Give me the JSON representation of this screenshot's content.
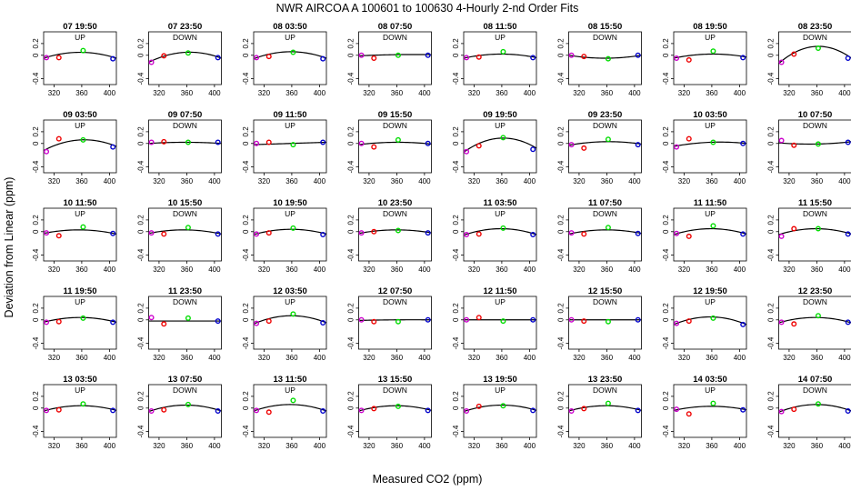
{
  "chart_data": {
    "type": "scatter",
    "title": "NWR   AIRCOA A    100601 to 100630   4-Hourly 2-nd Order Fits",
    "xlabel": "Measured CO2 (ppm)",
    "ylabel": "Deviation from Linear (ppm)",
    "xlim": [
      305,
      410
    ],
    "ylim": [
      -0.5,
      0.4
    ],
    "xticks": [
      320,
      360,
      400
    ],
    "yticks": [
      -0.4,
      0.0,
      0.2
    ],
    "ytick_labels": [
      "-0.4",
      "0",
      "0.2"
    ],
    "point_colors": [
      "#cc00cc",
      "#ee0000",
      "#00dd00",
      "#0000cc"
    ],
    "point_x": [
      309,
      327,
      362,
      405
    ],
    "grid": false,
    "legend": "none",
    "panel_layout": {
      "rows": 5,
      "cols": 8
    },
    "panels": [
      {
        "label": "07 19:50",
        "direction": "UP",
        "points": [
          -0.04,
          -0.04,
          0.08,
          -0.06
        ],
        "curve": [
          -0.05,
          0.05,
          -0.05
        ]
      },
      {
        "label": "07 23:50",
        "direction": "DOWN",
        "points": [
          -0.12,
          -0.01,
          0.04,
          -0.04
        ],
        "curve": [
          -0.12,
          0.05,
          -0.05
        ]
      },
      {
        "label": "08 03:50",
        "direction": "UP",
        "points": [
          -0.04,
          -0.02,
          0.05,
          -0.06
        ],
        "curve": [
          -0.06,
          0.06,
          -0.05
        ]
      },
      {
        "label": "08 07:50",
        "direction": "DOWN",
        "points": [
          0.0,
          -0.05,
          0.0,
          0.0
        ],
        "curve": [
          -0.01,
          0.01,
          0.01
        ]
      },
      {
        "label": "08 11:50",
        "direction": "UP",
        "points": [
          -0.04,
          -0.03,
          0.06,
          -0.04
        ],
        "curve": [
          -0.05,
          0.02,
          -0.04
        ]
      },
      {
        "label": "08 15:50",
        "direction": "DOWN",
        "points": [
          0.0,
          -0.02,
          -0.06,
          0.0
        ],
        "curve": [
          0.0,
          -0.05,
          0.0
        ]
      },
      {
        "label": "08 19:50",
        "direction": "UP",
        "points": [
          -0.05,
          -0.08,
          0.07,
          -0.04
        ],
        "curve": [
          -0.05,
          0.02,
          -0.03
        ]
      },
      {
        "label": "08 23:50",
        "direction": "DOWN",
        "points": [
          -0.12,
          0.02,
          0.12,
          -0.05
        ],
        "curve": [
          -0.14,
          0.15,
          -0.05
        ]
      },
      {
        "label": "09 03:50",
        "direction": "UP",
        "points": [
          -0.14,
          0.08,
          0.06,
          -0.06
        ],
        "curve": [
          -0.12,
          0.06,
          -0.05
        ]
      },
      {
        "label": "09 07:50",
        "direction": "DOWN",
        "points": [
          0.02,
          0.03,
          0.02,
          0.02
        ],
        "curve": [
          0.0,
          0.02,
          0.0
        ]
      },
      {
        "label": "09 11:50",
        "direction": "UP",
        "points": [
          0.0,
          0.02,
          -0.02,
          0.02
        ],
        "curve": [
          -0.02,
          0.0,
          0.02
        ]
      },
      {
        "label": "09 15:50",
        "direction": "DOWN",
        "points": [
          0.0,
          -0.06,
          0.06,
          0.0
        ],
        "curve": [
          -0.02,
          0.02,
          -0.01
        ]
      },
      {
        "label": "09 19:50",
        "direction": "UP",
        "points": [
          -0.14,
          -0.04,
          0.1,
          -0.1
        ],
        "curve": [
          -0.15,
          0.09,
          -0.08
        ]
      },
      {
        "label": "09 23:50",
        "direction": "DOWN",
        "points": [
          -0.02,
          -0.08,
          0.07,
          -0.02
        ],
        "curve": [
          -0.03,
          0.03,
          -0.01
        ]
      },
      {
        "label": "10 03:50",
        "direction": "UP",
        "points": [
          -0.06,
          0.08,
          0.02,
          0.0
        ],
        "curve": [
          -0.05,
          0.02,
          0.0
        ]
      },
      {
        "label": "10 07:50",
        "direction": "DOWN",
        "points": [
          0.05,
          -0.03,
          -0.01,
          0.02
        ],
        "curve": [
          0.01,
          -0.01,
          0.03
        ]
      },
      {
        "label": "10 11:50",
        "direction": "UP",
        "points": [
          -0.02,
          -0.07,
          0.08,
          -0.03
        ],
        "curve": [
          -0.03,
          0.03,
          -0.04
        ]
      },
      {
        "label": "10 15:50",
        "direction": "DOWN",
        "points": [
          -0.02,
          -0.04,
          0.07,
          -0.04
        ],
        "curve": [
          -0.03,
          0.03,
          -0.04
        ]
      },
      {
        "label": "10 19:50",
        "direction": "UP",
        "points": [
          -0.04,
          -0.02,
          0.06,
          -0.05
        ],
        "curve": [
          -0.05,
          0.04,
          -0.04
        ]
      },
      {
        "label": "10 23:50",
        "direction": "DOWN",
        "points": [
          -0.02,
          0.0,
          0.02,
          -0.02
        ],
        "curve": [
          -0.03,
          0.03,
          -0.02
        ]
      },
      {
        "label": "11 03:50",
        "direction": "UP",
        "points": [
          -0.05,
          -0.04,
          0.06,
          -0.05
        ],
        "curve": [
          -0.06,
          0.05,
          -0.05
        ]
      },
      {
        "label": "11 07:50",
        "direction": "DOWN",
        "points": [
          -0.02,
          -0.04,
          0.07,
          -0.03
        ],
        "curve": [
          -0.04,
          0.03,
          -0.03
        ]
      },
      {
        "label": "11 11:50",
        "direction": "UP",
        "points": [
          -0.03,
          -0.08,
          0.1,
          -0.04
        ],
        "curve": [
          -0.05,
          0.05,
          -0.04
        ]
      },
      {
        "label": "11 15:50",
        "direction": "DOWN",
        "points": [
          -0.08,
          0.05,
          0.05,
          -0.04
        ],
        "curve": [
          -0.05,
          0.05,
          -0.04
        ]
      },
      {
        "label": "11 19:50",
        "direction": "UP",
        "points": [
          -0.04,
          -0.03,
          0.03,
          -0.04
        ],
        "curve": [
          -0.04,
          0.04,
          -0.04
        ]
      },
      {
        "label": "11 23:50",
        "direction": "DOWN",
        "points": [
          0.04,
          -0.07,
          0.03,
          -0.02
        ],
        "curve": [
          -0.02,
          -0.02,
          -0.02
        ]
      },
      {
        "label": "12 03:50",
        "direction": "UP",
        "points": [
          -0.06,
          -0.02,
          0.1,
          -0.05
        ],
        "curve": [
          -0.07,
          0.07,
          -0.05
        ]
      },
      {
        "label": "12 07:50",
        "direction": "DOWN",
        "points": [
          0.0,
          -0.03,
          -0.03,
          0.0
        ],
        "curve": [
          -0.01,
          0.0,
          0.0
        ]
      },
      {
        "label": "12 11:50",
        "direction": "UP",
        "points": [
          0.0,
          0.04,
          -0.02,
          0.0
        ],
        "curve": [
          0.0,
          0.0,
          0.0
        ]
      },
      {
        "label": "12 15:50",
        "direction": "DOWN",
        "points": [
          0.0,
          -0.02,
          -0.03,
          0.0
        ],
        "curve": [
          0.0,
          0.0,
          0.0
        ]
      },
      {
        "label": "12 19:50",
        "direction": "UP",
        "points": [
          -0.06,
          -0.02,
          0.03,
          -0.08
        ],
        "curve": [
          -0.08,
          0.05,
          -0.08
        ]
      },
      {
        "label": "12 23:50",
        "direction": "DOWN",
        "points": [
          -0.04,
          -0.07,
          0.07,
          -0.04
        ],
        "curve": [
          -0.05,
          0.04,
          -0.05
        ]
      },
      {
        "label": "13 03:50",
        "direction": "UP",
        "points": [
          -0.04,
          -0.03,
          0.07,
          -0.04
        ],
        "curve": [
          -0.05,
          0.04,
          -0.04
        ]
      },
      {
        "label": "13 07:50",
        "direction": "DOWN",
        "points": [
          -0.05,
          -0.03,
          0.06,
          -0.05
        ],
        "curve": [
          -0.06,
          0.05,
          -0.05
        ]
      },
      {
        "label": "13 11:50",
        "direction": "UP",
        "points": [
          -0.04,
          -0.07,
          0.13,
          -0.05
        ],
        "curve": [
          -0.05,
          0.06,
          -0.05
        ]
      },
      {
        "label": "13 15:50",
        "direction": "DOWN",
        "points": [
          -0.04,
          -0.01,
          0.03,
          -0.04
        ],
        "curve": [
          -0.05,
          0.04,
          -0.04
        ]
      },
      {
        "label": "13 19:50",
        "direction": "UP",
        "points": [
          -0.05,
          0.03,
          0.04,
          -0.04
        ],
        "curve": [
          -0.06,
          0.05,
          -0.04
        ]
      },
      {
        "label": "13 23:50",
        "direction": "DOWN",
        "points": [
          -0.05,
          -0.01,
          0.08,
          -0.04
        ],
        "curve": [
          -0.05,
          0.04,
          -0.04
        ]
      },
      {
        "label": "14 03:50",
        "direction": "UP",
        "points": [
          -0.02,
          -0.1,
          0.08,
          -0.03
        ],
        "curve": [
          -0.04,
          0.03,
          -0.03
        ]
      },
      {
        "label": "14 07:50",
        "direction": "DOWN",
        "points": [
          -0.06,
          -0.02,
          0.07,
          -0.05
        ],
        "curve": [
          -0.07,
          0.06,
          -0.05
        ]
      }
    ]
  }
}
